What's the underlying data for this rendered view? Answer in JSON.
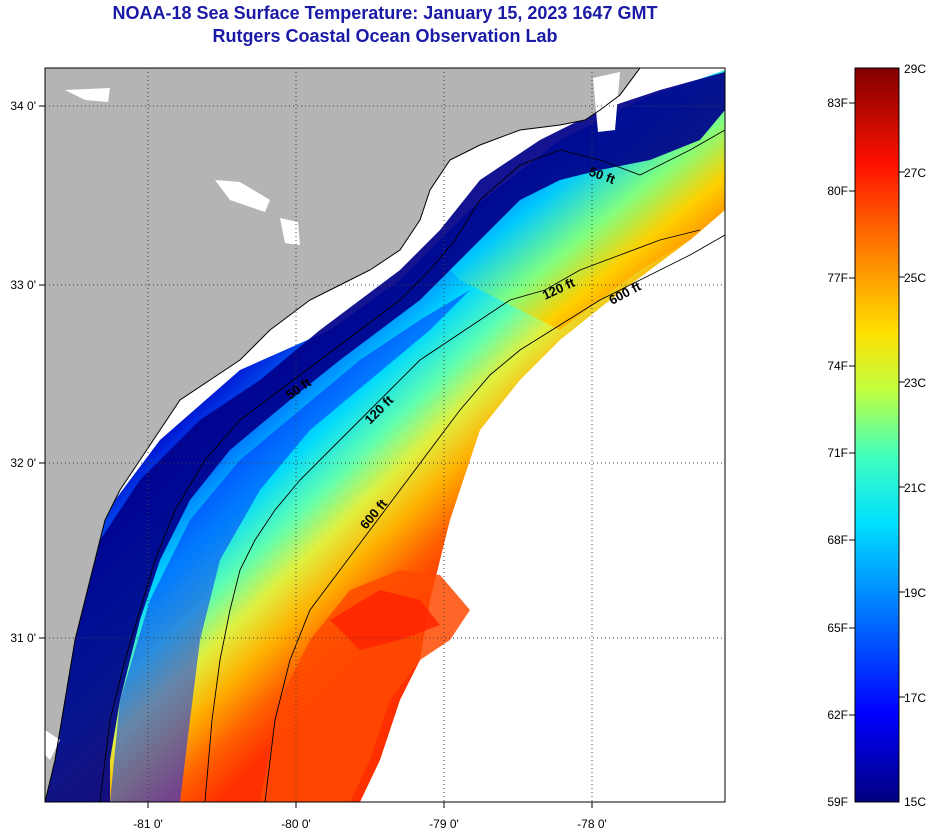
{
  "title": "NOAA-18 Sea Surface Temperature:  January 15, 2023 1647 GMT",
  "subtitle": "Rutgers Coastal Ocean Observation Lab",
  "axes": {
    "lon_labels": [
      "-81 0'",
      "-80 0'",
      "-79 0'",
      "-78 0'"
    ],
    "lat_labels": [
      "34 0'",
      "33 0'",
      "32 0'",
      "31 0'"
    ]
  },
  "contours": [
    {
      "label": "50 ft",
      "depth_ft": 50
    },
    {
      "label": "50 ft",
      "depth_ft": 50
    },
    {
      "label": "120 ft",
      "depth_ft": 120
    },
    {
      "label": "120 ft",
      "depth_ft": 120
    },
    {
      "label": "600 ft",
      "depth_ft": 600
    },
    {
      "label": "600 ft",
      "depth_ft": 600
    }
  ],
  "colorbar": {
    "fahrenheit": [
      "83F",
      "80F",
      "77F",
      "74F",
      "71F",
      "68F",
      "65F",
      "62F",
      "59F"
    ],
    "celsius": [
      "29C",
      "27C",
      "25C",
      "23C",
      "21C",
      "19C",
      "17C",
      "15C"
    ],
    "min_c": 15,
    "max_c": 29,
    "colormap": [
      "#00007f",
      "#0000ff",
      "#0080ff",
      "#00e0ff",
      "#40ffc0",
      "#c0ff40",
      "#ffe000",
      "#ff8000",
      "#ff1000",
      "#800000"
    ]
  },
  "colors": {
    "land": "#b4b4b4",
    "cloud": "#ffffff",
    "cold_water": "#00008a",
    "title": "#1a1aa6"
  }
}
